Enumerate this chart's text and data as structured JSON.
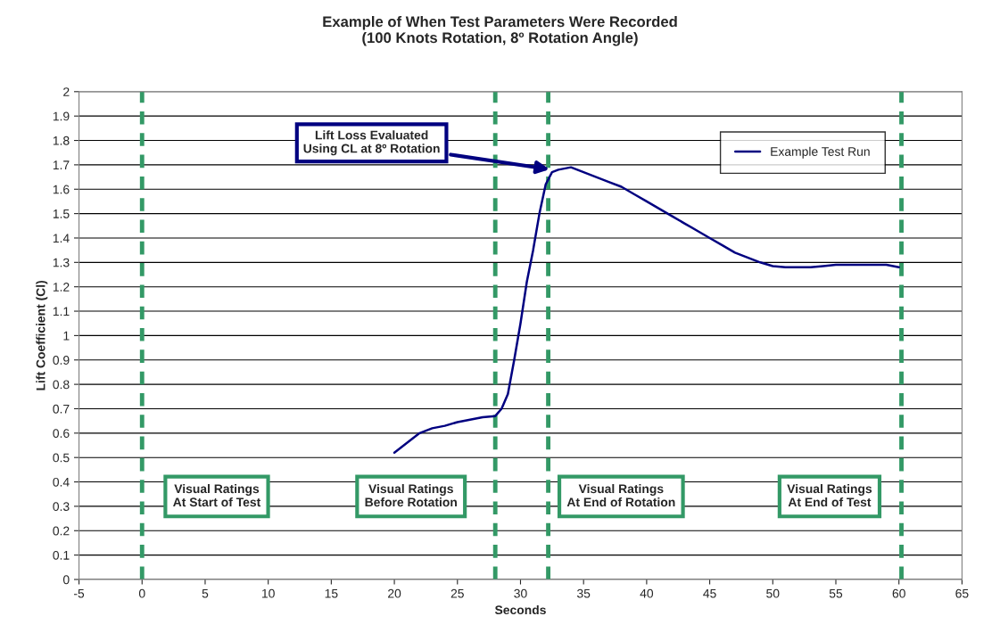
{
  "chart_data": {
    "type": "line",
    "title": "Example of When Test Parameters Were Recorded\n(100 Knots Rotation, 8º Rotation Angle)",
    "xlabel": "Seconds",
    "ylabel": "Lift Coefficient (Cl)",
    "x": [
      20,
      21,
      22,
      23,
      24,
      25,
      26,
      27,
      28,
      28.5,
      29,
      29.5,
      30,
      30.5,
      31,
      31.5,
      32,
      32.5,
      33,
      34,
      35,
      36,
      37,
      38,
      39,
      40,
      41,
      42,
      43,
      44,
      45,
      46,
      47,
      48,
      49,
      50,
      51,
      52,
      53,
      54,
      55,
      56,
      57,
      58,
      59,
      60
    ],
    "series": [
      {
        "name": "Example Test Run",
        "color": "#000080",
        "values": [
          0.52,
          0.56,
          0.6,
          0.62,
          0.63,
          0.645,
          0.655,
          0.665,
          0.67,
          0.7,
          0.76,
          0.9,
          1.05,
          1.22,
          1.35,
          1.5,
          1.62,
          1.67,
          1.68,
          1.69,
          1.67,
          1.65,
          1.63,
          1.61,
          1.58,
          1.55,
          1.52,
          1.49,
          1.46,
          1.43,
          1.4,
          1.37,
          1.34,
          1.32,
          1.3,
          1.285,
          1.28,
          1.28,
          1.28,
          1.285,
          1.29,
          1.29,
          1.29,
          1.29,
          1.29,
          1.28
        ]
      }
    ],
    "xlim": [
      -5,
      65
    ],
    "xticks": [
      -5,
      0,
      5,
      10,
      15,
      20,
      25,
      30,
      35,
      40,
      45,
      50,
      55,
      60,
      65
    ],
    "ylim": [
      0,
      2
    ],
    "yticks": [
      0,
      0.1,
      0.2,
      0.3,
      0.4,
      0.5,
      0.6,
      0.7,
      0.8,
      0.9,
      1,
      1.1,
      1.2,
      1.3,
      1.4,
      1.5,
      1.6,
      1.7,
      1.8,
      1.9,
      2
    ],
    "ref_lines": [
      {
        "axis": "x",
        "value": 0,
        "color": "#339966",
        "line_style": "dashed"
      },
      {
        "axis": "x",
        "value": 28,
        "color": "#339966",
        "line_style": "dashed"
      },
      {
        "axis": "x",
        "value": 32.2,
        "color": "#339966",
        "line_style": "dashed"
      },
      {
        "axis": "x",
        "value": 60.2,
        "color": "#339966",
        "line_style": "dashed"
      }
    ],
    "annotations": [
      {
        "text": "Lift Loss Evaluated\nUsing CL at 8º Rotation",
        "x": 32.5,
        "y": 1.68
      },
      "Visual Ratings\nAt Start of Test",
      "Visual Ratings\nBefore Rotation",
      "Visual Ratings\nAt End of Rotation",
      "Visual Ratings\nAt End of Test"
    ],
    "grid": "y",
    "legend": "top right",
    "line_style": "solid",
    "marker": "none"
  }
}
